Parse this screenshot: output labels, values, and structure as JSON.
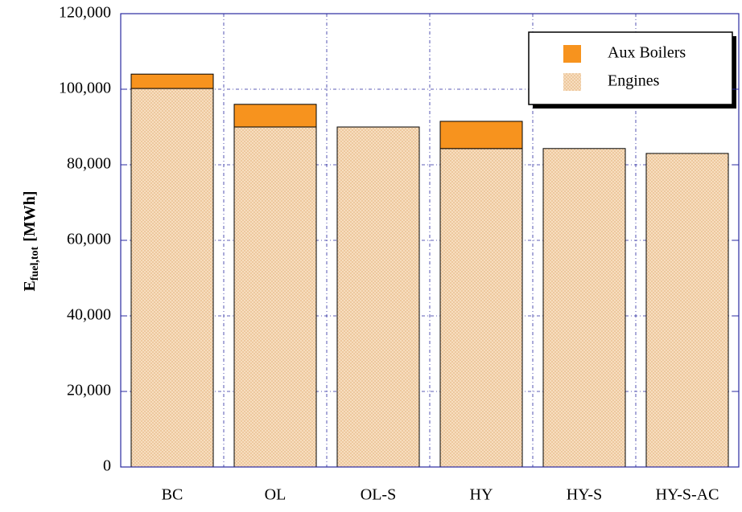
{
  "chart_data": {
    "type": "stacked_bar",
    "y_label": {
      "main": "E",
      "sub": "fuel,tot",
      "unit": "[MWh]"
    },
    "categories": [
      "BC",
      "OL",
      "OL-S",
      "HY",
      "HY-S",
      "HY-S-AC"
    ],
    "series": [
      {
        "name": "Engines",
        "color": "#f6d9b6",
        "values": [
          100200,
          90000,
          90000,
          84300,
          84300,
          83000
        ]
      },
      {
        "name": "Aux Boilers",
        "color": "#f7931e",
        "values": [
          3800,
          6000,
          0,
          7200,
          0,
          0
        ]
      }
    ],
    "ylim": [
      0,
      120000
    ],
    "yticks": [
      0,
      {
        "value": 20000,
        "label": "20,000"
      },
      {
        "value": 40000,
        "label": "40,000"
      },
      {
        "value": 60000,
        "label": "60,000"
      },
      {
        "value": 80000,
        "label": "80,000"
      },
      {
        "value": 100000,
        "label": "100,000"
      },
      {
        "value": 120000,
        "label": "120,000"
      }
    ],
    "grid": true,
    "legend": "top-right"
  }
}
